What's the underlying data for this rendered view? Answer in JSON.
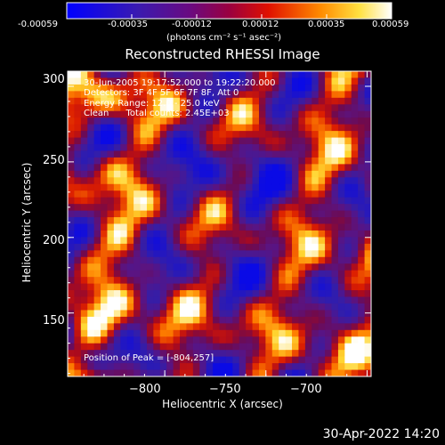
{
  "colorbar": {
    "ticks": [
      "-0.00059",
      "-0.00035",
      "-0.00012",
      "0.00012",
      "0.00035",
      "0.00059"
    ],
    "unit_label": "(photons cm⁻² s⁻¹ asec⁻²)"
  },
  "chart_data": {
    "type": "heatmap",
    "title": "Reconstructed RHESSI Image",
    "xlabel": "Heliocentric X (arcsec)",
    "ylabel": "Heliocentric Y (arcsec)",
    "xlim": [
      -848,
      -698
    ],
    "ylim": [
      108,
      310
    ],
    "xticks": [
      -800,
      -750,
      -700
    ],
    "xtick_labels": [
      "−800",
      "−750",
      "−700"
    ],
    "yticks": [
      150,
      200,
      250,
      300
    ],
    "ytick_labels": [
      "150",
      "200",
      "250",
      "300"
    ],
    "colormap": "rhessi-blue-purple-red-yellow-white",
    "value_range": [
      -0.00059,
      0.00059
    ],
    "annotations": [
      "30-Jun-2005 19:17:52.000 to 19:22:20.000",
      "Detectors: 3F 4F 5F 6F 7F 8F, Att 0",
      "Energy Range: 12.0 - 25.0 keV",
      "Clean      Total counts: 2.45E+03"
    ],
    "peak_label": "Position of Peak = [-804,257]",
    "peak_position": [
      -804,
      257
    ]
  },
  "footer": {
    "date": "30-Apr-2022 14:20"
  }
}
